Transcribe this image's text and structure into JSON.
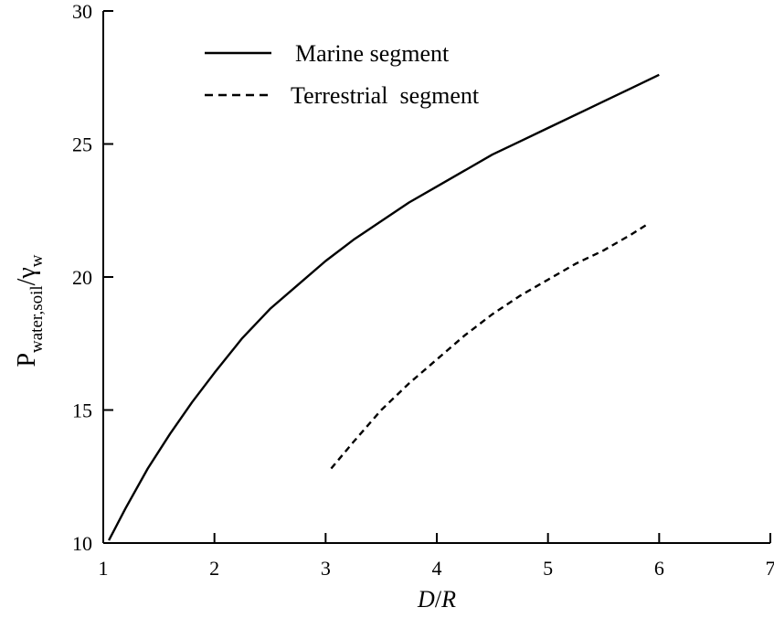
{
  "chart_data": {
    "type": "line",
    "xlabel": {
      "italic_1": "D",
      "sep": "/",
      "italic_2": "R"
    },
    "ylabel": {
      "main": "P",
      "sub": "water,soil",
      "sep": "/",
      "gamma": "γ",
      "gamma_sub": "w"
    },
    "xlim": [
      1,
      7
    ],
    "ylim": [
      10,
      30
    ],
    "xticks": [
      "1",
      "2",
      "3",
      "4",
      "5",
      "6",
      "7"
    ],
    "yticks": [
      "10",
      "15",
      "20",
      "25",
      "30"
    ],
    "grid": false,
    "legend_position": "top-left",
    "series": [
      {
        "name": "Marine segment",
        "style": "solid",
        "color": "#000000",
        "x": [
          1.05,
          1.2,
          1.4,
          1.6,
          1.8,
          2.0,
          2.25,
          2.5,
          2.75,
          3.0,
          3.25,
          3.5,
          3.75,
          4.0,
          4.25,
          4.5,
          4.75,
          5.0,
          5.25,
          5.5,
          5.75,
          6.0
        ],
        "y": [
          10.1,
          11.3,
          12.8,
          14.1,
          15.3,
          16.4,
          17.7,
          18.8,
          19.7,
          20.6,
          21.4,
          22.1,
          22.8,
          23.4,
          24.0,
          24.6,
          25.1,
          25.6,
          26.1,
          26.6,
          27.1,
          27.6
        ]
      },
      {
        "name": "Terrestrial  segment",
        "style": "dashed",
        "color": "#000000",
        "x": [
          3.05,
          3.25,
          3.5,
          3.75,
          4.0,
          4.25,
          4.5,
          4.75,
          5.0,
          5.25,
          5.5,
          5.75,
          5.9
        ],
        "y": [
          12.8,
          13.8,
          15.0,
          16.0,
          16.9,
          17.8,
          18.6,
          19.3,
          19.9,
          20.5,
          21.0,
          21.6,
          22.0
        ]
      }
    ]
  }
}
